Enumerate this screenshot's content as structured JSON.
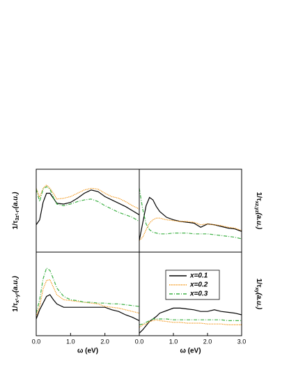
{
  "chart_data": [
    {
      "type": "line",
      "ylabel": {
        "text": "1/τ",
        "sub": "3z²-r²",
        "suffix": "(a.u.)"
      },
      "x": [
        0,
        0.1,
        0.2,
        0.3,
        0.4,
        0.5,
        0.6,
        0.8,
        1.0,
        1.2,
        1.4,
        1.6,
        1.8,
        2.0,
        2.2,
        2.4,
        2.6,
        2.8,
        3.0
      ],
      "xlim": [
        0,
        3
      ],
      "ylim": [
        0,
        1
      ],
      "series": [
        {
          "color": "#000000",
          "style": "solid",
          "values": [
            0.33,
            0.39,
            0.6,
            0.71,
            0.71,
            0.65,
            0.59,
            0.58,
            0.6,
            0.65,
            0.71,
            0.75,
            0.73,
            0.67,
            0.63,
            0.59,
            0.55,
            0.5,
            0.45
          ]
        },
        {
          "color": "#f28c00",
          "style": "dotted",
          "values": [
            0.77,
            0.66,
            0.77,
            0.81,
            0.77,
            0.71,
            0.64,
            0.65,
            0.67,
            0.71,
            0.75,
            0.77,
            0.76,
            0.71,
            0.67,
            0.65,
            0.61,
            0.56,
            0.52
          ]
        },
        {
          "color": "#3cb043",
          "style": "dashdot",
          "values": [
            0.76,
            0.61,
            0.76,
            0.79,
            0.76,
            0.66,
            0.58,
            0.56,
            0.58,
            0.61,
            0.63,
            0.64,
            0.61,
            0.56,
            0.52,
            0.48,
            0.45,
            0.42,
            0.37
          ]
        }
      ]
    },
    {
      "type": "line",
      "ylabel": {
        "text": "1/τ",
        "sub": "xz,yz",
        "suffix": "(a.u.)"
      },
      "x": [
        0,
        0.1,
        0.2,
        0.3,
        0.4,
        0.5,
        0.6,
        0.8,
        1.0,
        1.2,
        1.4,
        1.6,
        1.8,
        2.0,
        2.2,
        2.4,
        2.6,
        2.8,
        3.0
      ],
      "xlim": [
        0,
        3
      ],
      "ylim": [
        0,
        1
      ],
      "series": [
        {
          "color": "#000000",
          "style": "solid",
          "values": [
            0.14,
            0.35,
            0.56,
            0.66,
            0.63,
            0.55,
            0.49,
            0.42,
            0.39,
            0.37,
            0.36,
            0.35,
            0.3,
            0.34,
            0.33,
            0.31,
            0.29,
            0.28,
            0.25
          ]
        },
        {
          "color": "#f28c00",
          "style": "dotted",
          "values": [
            0.14,
            0.18,
            0.27,
            0.35,
            0.39,
            0.41,
            0.41,
            0.39,
            0.38,
            0.37,
            0.37,
            0.36,
            0.33,
            0.34,
            0.33,
            0.32,
            0.3,
            0.29,
            0.26
          ]
        },
        {
          "color": "#3cb043",
          "style": "dashdot",
          "values": [
            0.77,
            0.52,
            0.34,
            0.27,
            0.24,
            0.23,
            0.22,
            0.22,
            0.23,
            0.23,
            0.23,
            0.22,
            0.22,
            0.22,
            0.21,
            0.2,
            0.19,
            0.18,
            0.16
          ]
        }
      ]
    },
    {
      "type": "line",
      "ylabel": {
        "text": "1/τ",
        "sub": "x²-y²",
        "suffix": "(a.u.)"
      },
      "xlabel": "ω (eV)",
      "x": [
        0,
        0.1,
        0.2,
        0.3,
        0.4,
        0.5,
        0.6,
        0.8,
        1.0,
        1.2,
        1.4,
        1.6,
        1.8,
        2.0,
        2.2,
        2.4,
        2.6,
        2.8,
        3.0
      ],
      "xlim": [
        0,
        3
      ],
      "ylim": [
        0,
        1
      ],
      "xticks": [
        {
          "value": 0,
          "label": "0.0"
        },
        {
          "value": 1,
          "label": "1.0"
        },
        {
          "value": 2,
          "label": "2.0"
        }
      ],
      "series": [
        {
          "color": "#000000",
          "style": "solid",
          "values": [
            0.2,
            0.31,
            0.39,
            0.47,
            0.49,
            0.43,
            0.38,
            0.34,
            0.34,
            0.34,
            0.34,
            0.34,
            0.34,
            0.34,
            0.31,
            0.29,
            0.25,
            0.22,
            0.18
          ]
        },
        {
          "color": "#f28c00",
          "style": "dotted",
          "values": [
            0.23,
            0.35,
            0.56,
            0.66,
            0.67,
            0.58,
            0.49,
            0.43,
            0.42,
            0.41,
            0.4,
            0.39,
            0.38,
            0.35,
            0.34,
            0.33,
            0.31,
            0.29,
            0.27
          ]
        },
        {
          "color": "#3cb043",
          "style": "dashdot",
          "values": [
            0.27,
            0.43,
            0.68,
            0.81,
            0.78,
            0.68,
            0.57,
            0.47,
            0.43,
            0.42,
            0.4,
            0.4,
            0.39,
            0.39,
            0.38,
            0.38,
            0.37,
            0.36,
            0.35
          ]
        }
      ]
    },
    {
      "type": "line",
      "ylabel": {
        "text": "1/τ",
        "sub": "xy",
        "suffix": "(a.u.)"
      },
      "xlabel": "ω (eV)",
      "x": [
        0,
        0.1,
        0.2,
        0.3,
        0.4,
        0.5,
        0.6,
        0.8,
        1.0,
        1.2,
        1.4,
        1.6,
        1.8,
        2.0,
        2.2,
        2.4,
        2.6,
        2.8,
        3.0
      ],
      "xlim": [
        0,
        3
      ],
      "ylim": [
        0,
        1
      ],
      "xticks": [
        {
          "value": 0,
          "label": "0.0"
        },
        {
          "value": 1,
          "label": "1.0"
        },
        {
          "value": 2,
          "label": "2.0"
        },
        {
          "value": 3,
          "label": "3.0"
        }
      ],
      "legend": "center",
      "series": [
        {
          "name": "x=0.1",
          "color": "#000000",
          "style": "solid",
          "values": [
            0.03,
            0.07,
            0.12,
            0.17,
            0.2,
            0.23,
            0.27,
            0.3,
            0.33,
            0.33,
            0.32,
            0.31,
            0.29,
            0.29,
            0.31,
            0.29,
            0.28,
            0.27,
            0.25
          ]
        },
        {
          "name": "x=0.2",
          "color": "#f28c00",
          "style": "dotted",
          "values": [
            0.1,
            0.13,
            0.14,
            0.17,
            0.18,
            0.19,
            0.18,
            0.17,
            0.16,
            0.16,
            0.15,
            0.15,
            0.15,
            0.14,
            0.14,
            0.14,
            0.13,
            0.13,
            0.13
          ]
        },
        {
          "name": "x=0.3",
          "color": "#3cb043",
          "style": "dashdot",
          "values": [
            0.13,
            0.14,
            0.16,
            0.18,
            0.2,
            0.2,
            0.2,
            0.2,
            0.19,
            0.19,
            0.19,
            0.19,
            0.19,
            0.19,
            0.19,
            0.19,
            0.18,
            0.18,
            0.18
          ]
        }
      ]
    }
  ]
}
